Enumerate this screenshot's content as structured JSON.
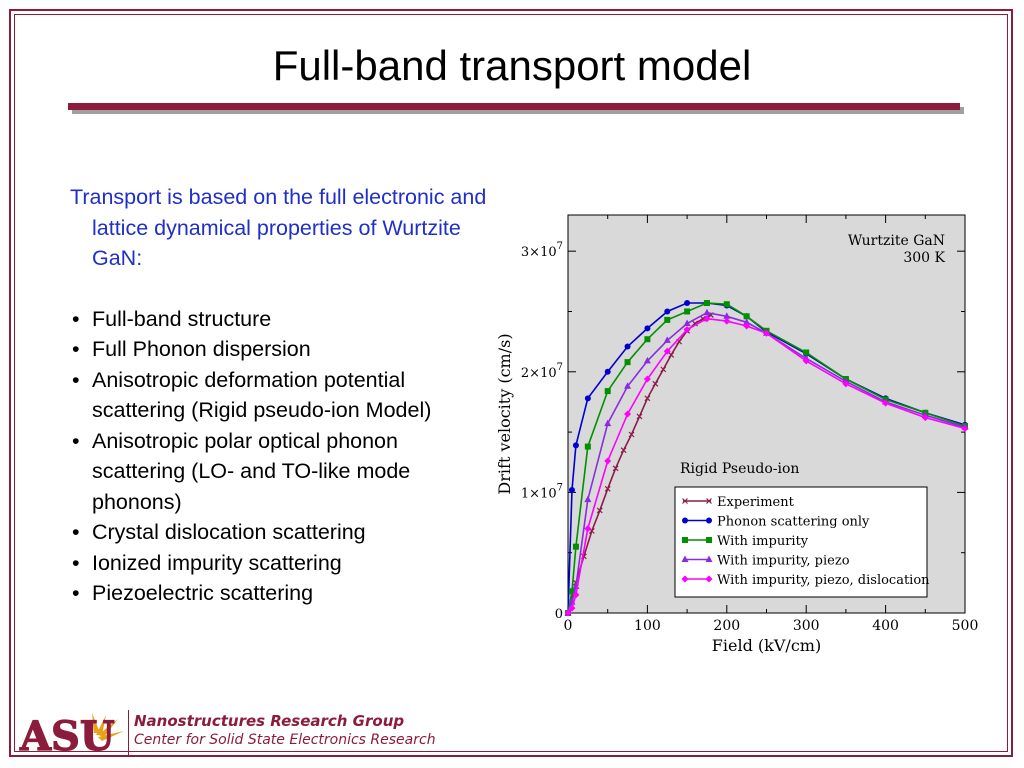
{
  "slide": {
    "title": "Full-band transport model",
    "intro": "Transport is based on the full electronic and lattice dynamical properties of Wurtzite GaN:",
    "bullets": [
      "Full-band structure",
      "Full Phonon dispersion",
      "Anisotropic deformation potential scattering (Rigid pseudo-ion Model)",
      "Anisotropic polar optical phonon scattering (LO- and TO-like mode phonons)",
      "Crystal dislocation scattering",
      "Ionized impurity scattering",
      "Piezoelectric scattering"
    ],
    "bullet_glyph": "•"
  },
  "footer": {
    "group": "Nanostructures Research Group",
    "center": "Center for Solid State Electronics Research",
    "logo_text": "ASU"
  },
  "colors": {
    "accent": "#8c1c3c",
    "intro_text": "#1f2fc8",
    "plot_bg": "#d9d9d9"
  },
  "chart_data": {
    "type": "line",
    "xlabel": "Field (kV/cm)",
    "ylabel": "Drift velocity (cm/s)",
    "xlim": [
      0,
      500
    ],
    "ylim": [
      0,
      33000000
    ],
    "xticks": [
      0,
      100,
      200,
      300,
      400,
      500
    ],
    "yticks": [
      {
        "value": 0,
        "base": "0",
        "exp": ""
      },
      {
        "value": 10000000,
        "base": "1×10",
        "exp": "7"
      },
      {
        "value": 20000000,
        "base": "2×10",
        "exp": "7"
      },
      {
        "value": 30000000,
        "base": "3×10",
        "exp": "7"
      }
    ],
    "annotations": [
      "Wurtzite GaN",
      "300 K",
      "Rigid Pseudo-ion"
    ],
    "legend_position": "bottom-right",
    "series": [
      {
        "name": "Experiment",
        "color": "#8b1a4a",
        "marker": "x",
        "x": [
          0,
          10,
          20,
          30,
          40,
          50,
          60,
          70,
          80,
          90,
          100,
          110,
          120,
          130,
          140,
          150,
          160,
          170,
          180
        ],
        "y": [
          0,
          2500000,
          4700000,
          6800000,
          8500000,
          10300000,
          12000000,
          13500000,
          14800000,
          16300000,
          17800000,
          19000000,
          20200000,
          21400000,
          22500000,
          23400000,
          24000000,
          24400000,
          24700000
        ]
      },
      {
        "name": "Phonon scattering only",
        "color": "#0000d0",
        "marker": "circle",
        "x": [
          0,
          5,
          10,
          25,
          50,
          75,
          100,
          125,
          150,
          175,
          200,
          225,
          250,
          300,
          350,
          400,
          450,
          500
        ],
        "y": [
          0,
          10200000,
          13900000,
          17800000,
          20000000,
          22100000,
          23600000,
          25000000,
          25700000,
          25700000,
          25500000,
          24600000,
          23300000,
          21500000,
          19400000,
          17800000,
          16600000,
          15600000
        ]
      },
      {
        "name": "With impurity",
        "color": "#009000",
        "marker": "square",
        "x": [
          0,
          5,
          10,
          25,
          50,
          75,
          100,
          125,
          150,
          175,
          200,
          225,
          250,
          300,
          350,
          400,
          450,
          500
        ],
        "y": [
          0,
          1800000,
          5500000,
          13800000,
          18400000,
          20800000,
          22700000,
          24300000,
          25000000,
          25700000,
          25600000,
          24600000,
          23400000,
          21600000,
          19400000,
          17700000,
          16600000,
          15500000
        ]
      },
      {
        "name": "With impurity, piezo",
        "color": "#8a2be2",
        "marker": "triangle",
        "x": [
          0,
          5,
          10,
          25,
          50,
          75,
          100,
          125,
          150,
          175,
          200,
          225,
          250,
          300,
          350,
          400,
          450,
          500
        ],
        "y": [
          0,
          900000,
          2200000,
          9400000,
          15700000,
          18800000,
          20900000,
          22600000,
          24000000,
          24900000,
          24600000,
          24100000,
          23200000,
          21100000,
          19200000,
          17500000,
          16400000,
          15400000
        ]
      },
      {
        "name": "With impurity, piezo, dislocation",
        "color": "#ff00ff",
        "marker": "diamond",
        "x": [
          0,
          5,
          10,
          25,
          50,
          75,
          100,
          125,
          150,
          175,
          200,
          225,
          250,
          300,
          350,
          400,
          450,
          500
        ],
        "y": [
          0,
          400000,
          1500000,
          7000000,
          12600000,
          16500000,
          19400000,
          21700000,
          23500000,
          24400000,
          24200000,
          23800000,
          23200000,
          20900000,
          19000000,
          17400000,
          16200000,
          15300000
        ]
      }
    ]
  }
}
